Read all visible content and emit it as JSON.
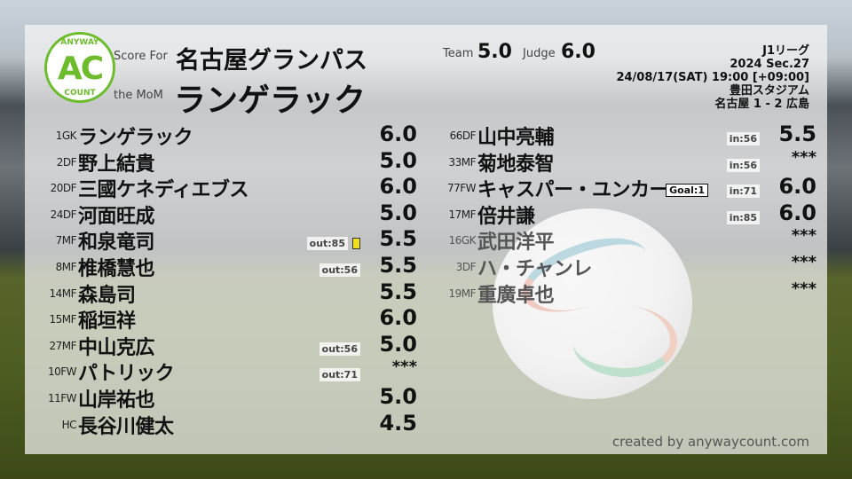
{
  "header": {
    "logo_top": "ANYWAY",
    "logo_mid": "AC",
    "logo_bottom": "COUNT",
    "score_for_label": "Score For",
    "team": "名古屋グランパス",
    "mom_label": "the MoM",
    "mom": "ランゲラック",
    "team_label": "Team",
    "team_score": "5.0",
    "judge_label": "Judge",
    "judge_score": "6.0"
  },
  "match": {
    "league": "J1リーグ",
    "section": "2024 Sec.27",
    "datetime": "24/08/17(SAT) 19:00 [+09:00]",
    "venue": "豊田スタジアム",
    "result": "名古屋 1 - 2 広島"
  },
  "colors": {
    "logo": "#6cbc2c",
    "yellow_card": "#f0e020"
  },
  "left_players": [
    {
      "num": "1GK",
      "name": "ランゲラック",
      "score": "6.0"
    },
    {
      "num": "2DF",
      "name": "野上結貴",
      "score": "5.0"
    },
    {
      "num": "20DF",
      "name": "三國ケネディエブス",
      "score": "6.0"
    },
    {
      "num": "24DF",
      "name": "河面旺成",
      "score": "5.0"
    },
    {
      "num": "7MF",
      "name": "和泉竜司",
      "score": "5.5",
      "sub": "out:85",
      "yellow": true
    },
    {
      "num": "8MF",
      "name": "椎橋慧也",
      "score": "5.5",
      "sub": "out:56"
    },
    {
      "num": "14MF",
      "name": "森島司",
      "score": "5.5"
    },
    {
      "num": "15MF",
      "name": "稲垣祥",
      "score": "6.0"
    },
    {
      "num": "27MF",
      "name": "中山克広",
      "score": "5.0",
      "sub": "out:56"
    },
    {
      "num": "10FW",
      "name": "パトリック",
      "score": "***",
      "sub": "out:71"
    },
    {
      "num": "11FW",
      "name": "山岸祐也",
      "score": "5.0"
    },
    {
      "num": "HC",
      "name": "長谷川健太",
      "score": "4.5"
    }
  ],
  "right_players": [
    {
      "num": "66DF",
      "name": "山中亮輔",
      "score": "5.5",
      "sub": "in:56"
    },
    {
      "num": "33MF",
      "name": "菊地泰智",
      "score": "***",
      "sub": "in:56"
    },
    {
      "num": "77FW",
      "name": "キャスパー・ユンカー",
      "score": "6.0",
      "sub": "in:71",
      "goal": "Goal:1"
    },
    {
      "num": "17MF",
      "name": "倍井謙",
      "score": "6.0",
      "sub": "in:85"
    },
    {
      "num": "16GK",
      "name": "武田洋平",
      "score": "***",
      "unused": true
    },
    {
      "num": "3DF",
      "name": "ハ・チャンレ",
      "score": "***",
      "unused": true
    },
    {
      "num": "19MF",
      "name": "重廣卓也",
      "score": "***",
      "unused": true
    }
  ],
  "footer": "created by anywaycount.com"
}
